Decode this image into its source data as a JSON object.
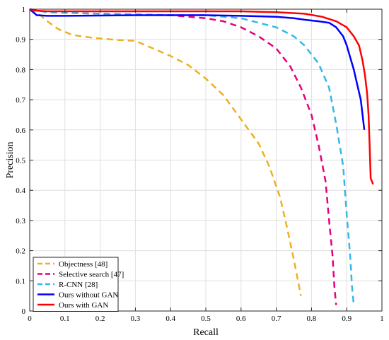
{
  "chart_data": {
    "type": "line",
    "title": "",
    "xlabel": "Recall",
    "ylabel": "Precision",
    "xlim": [
      0,
      1
    ],
    "ylim": [
      0,
      1
    ],
    "grid": true,
    "legend_position": "bottom-left",
    "x_ticks": [
      0,
      0.1,
      0.2,
      0.3,
      0.4,
      0.5,
      0.6,
      0.7,
      0.8,
      0.9,
      1
    ],
    "x_tick_labels": [
      "0",
      "0.1",
      "0.2",
      "0.3",
      "0.4",
      "0.5",
      "0.6",
      "0.7",
      "0.8",
      "0.9",
      "1"
    ],
    "y_ticks": [
      0,
      0.1,
      0.2,
      0.3,
      0.4,
      0.5,
      0.6,
      0.7,
      0.8,
      0.9,
      1
    ],
    "y_tick_labels": [
      "0",
      "0.1",
      "0.2",
      "0.3",
      "0.4",
      "0.5",
      "0.6",
      "0.7",
      "0.8",
      "0.9",
      "1"
    ],
    "series": [
      {
        "name": "Objectness [48]",
        "color": "#EDB120",
        "style": "dashed",
        "points": [
          [
            0.0,
            1.0
          ],
          [
            0.02,
            0.99
          ],
          [
            0.05,
            0.96
          ],
          [
            0.08,
            0.935
          ],
          [
            0.12,
            0.915
          ],
          [
            0.18,
            0.905
          ],
          [
            0.25,
            0.898
          ],
          [
            0.3,
            0.895
          ],
          [
            0.34,
            0.875
          ],
          [
            0.4,
            0.845
          ],
          [
            0.45,
            0.815
          ],
          [
            0.5,
            0.77
          ],
          [
            0.55,
            0.715
          ],
          [
            0.6,
            0.635
          ],
          [
            0.65,
            0.555
          ],
          [
            0.68,
            0.48
          ],
          [
            0.71,
            0.38
          ],
          [
            0.73,
            0.28
          ],
          [
            0.75,
            0.17
          ],
          [
            0.77,
            0.05
          ]
        ]
      },
      {
        "name": "Selective search [47]",
        "color": "#E6007E",
        "style": "dashed",
        "points": [
          [
            0.0,
            1.0
          ],
          [
            0.05,
            0.99
          ],
          [
            0.2,
            0.985
          ],
          [
            0.4,
            0.98
          ],
          [
            0.5,
            0.97
          ],
          [
            0.55,
            0.96
          ],
          [
            0.6,
            0.94
          ],
          [
            0.65,
            0.91
          ],
          [
            0.7,
            0.87
          ],
          [
            0.74,
            0.81
          ],
          [
            0.77,
            0.74
          ],
          [
            0.8,
            0.65
          ],
          [
            0.82,
            0.55
          ],
          [
            0.84,
            0.43
          ],
          [
            0.85,
            0.3
          ],
          [
            0.86,
            0.18
          ],
          [
            0.865,
            0.08
          ],
          [
            0.87,
            0.02
          ]
        ]
      },
      {
        "name": "R-CNN [28]",
        "color": "#36B7E6",
        "style": "dashed",
        "points": [
          [
            0.0,
            1.0
          ],
          [
            0.05,
            0.99
          ],
          [
            0.2,
            0.985
          ],
          [
            0.4,
            0.98
          ],
          [
            0.5,
            0.98
          ],
          [
            0.6,
            0.97
          ],
          [
            0.7,
            0.94
          ],
          [
            0.75,
            0.91
          ],
          [
            0.78,
            0.88
          ],
          [
            0.82,
            0.82
          ],
          [
            0.85,
            0.74
          ],
          [
            0.87,
            0.62
          ],
          [
            0.89,
            0.48
          ],
          [
            0.9,
            0.32
          ],
          [
            0.91,
            0.18
          ],
          [
            0.915,
            0.08
          ],
          [
            0.92,
            0.02
          ]
        ]
      },
      {
        "name": "Ours without GAN",
        "color": "#0000FF",
        "style": "solid",
        "points": [
          [
            0.0,
            1.0
          ],
          [
            0.01,
            0.99
          ],
          [
            0.02,
            0.98
          ],
          [
            0.05,
            0.978
          ],
          [
            0.1,
            0.978
          ],
          [
            0.3,
            0.98
          ],
          [
            0.5,
            0.98
          ],
          [
            0.6,
            0.978
          ],
          [
            0.7,
            0.975
          ],
          [
            0.75,
            0.97
          ],
          [
            0.78,
            0.965
          ],
          [
            0.82,
            0.96
          ],
          [
            0.85,
            0.955
          ],
          [
            0.87,
            0.94
          ],
          [
            0.89,
            0.91
          ],
          [
            0.9,
            0.88
          ],
          [
            0.91,
            0.84
          ],
          [
            0.92,
            0.8
          ],
          [
            0.93,
            0.75
          ],
          [
            0.94,
            0.7
          ],
          [
            0.945,
            0.65
          ],
          [
            0.95,
            0.6
          ]
        ]
      },
      {
        "name": "Ours with GAN",
        "color": "#FF0000",
        "style": "solid",
        "points": [
          [
            0.0,
            1.0
          ],
          [
            0.02,
            0.995
          ],
          [
            0.05,
            0.993
          ],
          [
            0.2,
            0.993
          ],
          [
            0.4,
            0.993
          ],
          [
            0.6,
            0.993
          ],
          [
            0.7,
            0.99
          ],
          [
            0.78,
            0.985
          ],
          [
            0.83,
            0.975
          ],
          [
            0.87,
            0.96
          ],
          [
            0.9,
            0.94
          ],
          [
            0.92,
            0.91
          ],
          [
            0.935,
            0.88
          ],
          [
            0.945,
            0.83
          ],
          [
            0.952,
            0.78
          ],
          [
            0.958,
            0.72
          ],
          [
            0.962,
            0.65
          ],
          [
            0.965,
            0.55
          ],
          [
            0.968,
            0.44
          ],
          [
            0.975,
            0.42
          ]
        ]
      }
    ]
  }
}
